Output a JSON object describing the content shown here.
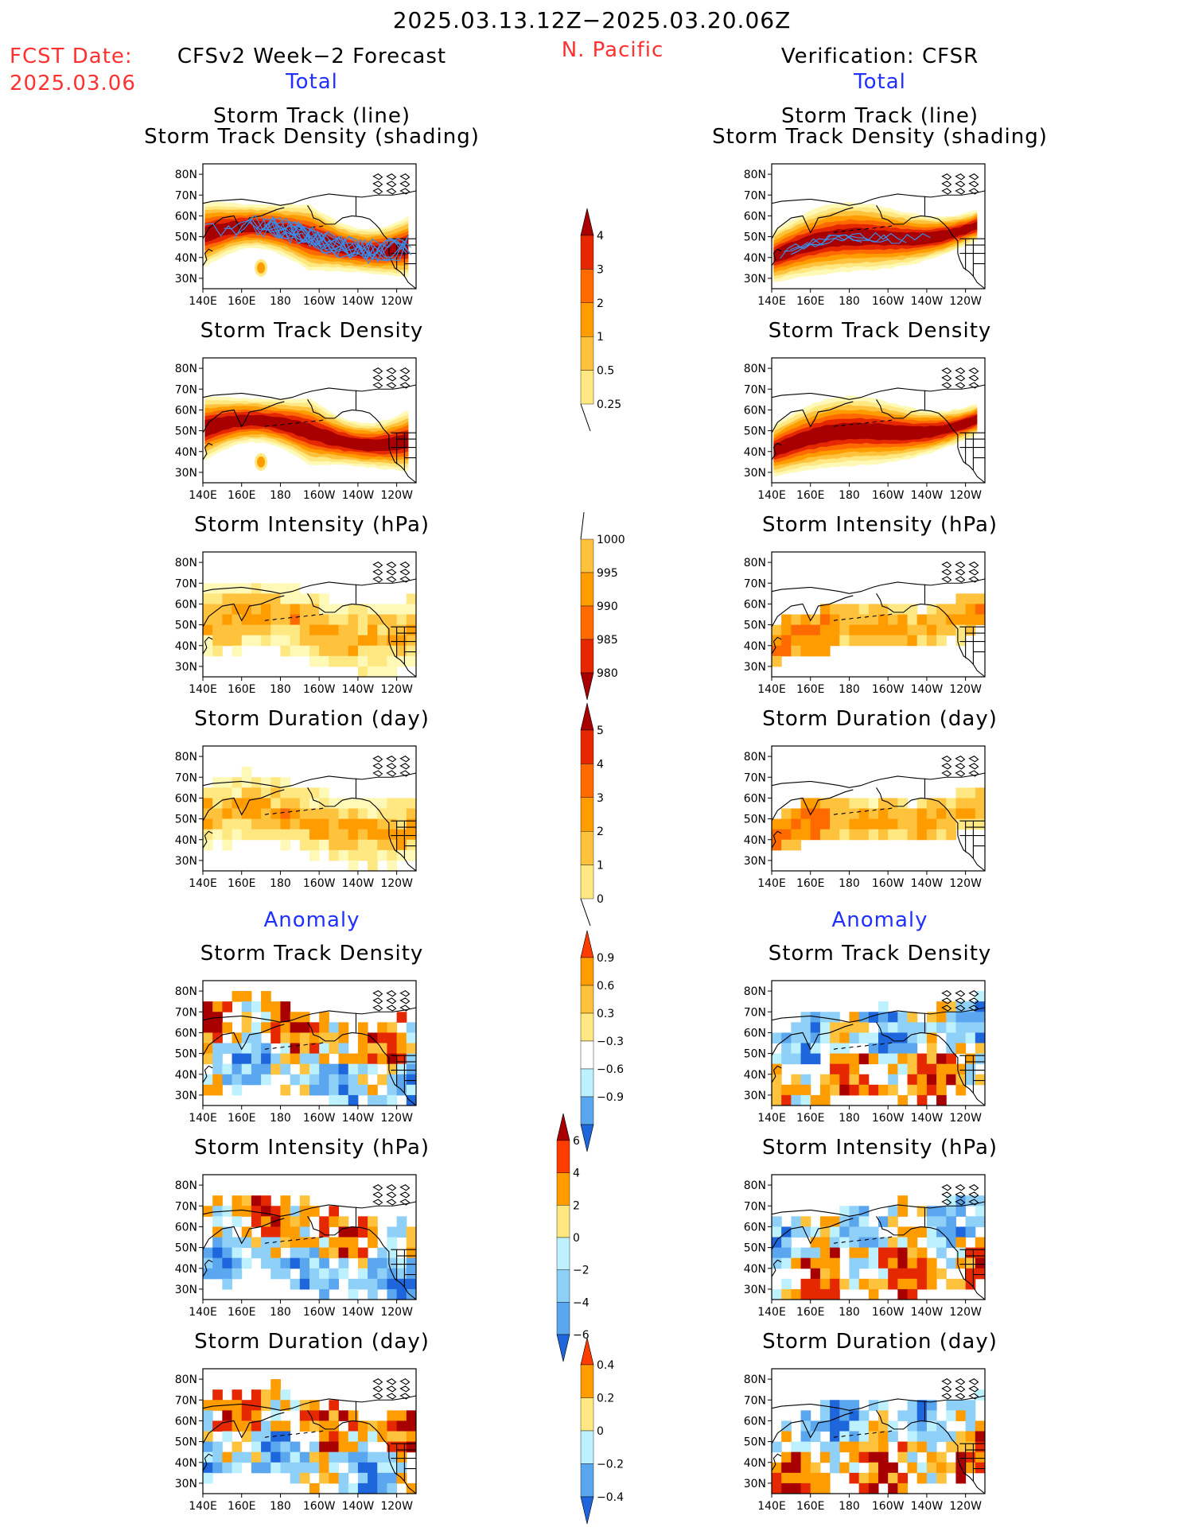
{
  "header": {
    "date_range": "2025.03.13.12Z−2025.03.20.06Z",
    "region": "N. Pacific",
    "fcst_label": "FCST Date:",
    "fcst_date": "2025.03.06",
    "left_title": "CFSv2 Week−2 Forecast",
    "right_title": "Verification: CFSR"
  },
  "sections": {
    "total": "Total",
    "anomaly": "Anomaly"
  },
  "panel_titles": {
    "track_line": "Storm Track (line)",
    "track_shading": "Storm Track Density (shading)",
    "density": "Storm Track Density",
    "intensity": "Storm Intensity (hPa)",
    "duration": "Storm Duration (day)"
  },
  "axes": {
    "lat_labels": [
      "80N",
      "70N",
      "60N",
      "50N",
      "40N",
      "30N"
    ],
    "lon_labels": [
      "140E",
      "160E",
      "180",
      "160W",
      "140W",
      "120W"
    ]
  },
  "colors": {
    "warm": [
      "#fff9b8",
      "#ffe882",
      "#ffc23c",
      "#ff9c00",
      "#ff6a00",
      "#e62800",
      "#a80000"
    ],
    "cool": [
      "#bdf1ff",
      "#8fd0f8",
      "#5aa7ef",
      "#1e66dc"
    ],
    "track_line": "#3c8ce8",
    "land_outline": "#000000"
  },
  "chart_data": [
    {
      "type": "heatmap",
      "column": "forecast",
      "row": "total",
      "title": "Storm Track (line) / Storm Track Density (shading)",
      "pattern": "belt with line",
      "legend": "density"
    },
    {
      "type": "heatmap",
      "column": "verification",
      "row": "total",
      "title": "Storm Track (line) / Storm Track Density (shading)",
      "pattern": "belt with line",
      "legend": "density"
    },
    {
      "type": "heatmap",
      "column": "forecast",
      "row": "total",
      "title": "Storm Track Density",
      "pattern": "belt",
      "legend": "density"
    },
    {
      "type": "heatmap",
      "column": "verification",
      "row": "total",
      "title": "Storm Track Density",
      "pattern": "belt",
      "legend": "density"
    },
    {
      "type": "heatmap",
      "column": "forecast",
      "row": "total",
      "title": "Storm Intensity (hPa)",
      "pattern": "grid",
      "legend": "intensity"
    },
    {
      "type": "heatmap",
      "column": "verification",
      "row": "total",
      "title": "Storm Intensity (hPa)",
      "pattern": "grid",
      "legend": "intensity"
    },
    {
      "type": "heatmap",
      "column": "forecast",
      "row": "total",
      "title": "Storm Duration (day)",
      "pattern": "grid",
      "legend": "duration"
    },
    {
      "type": "heatmap",
      "column": "verification",
      "row": "total",
      "title": "Storm Duration (day)",
      "pattern": "grid",
      "legend": "duration"
    },
    {
      "type": "heatmap",
      "column": "forecast",
      "row": "anomaly",
      "title": "Storm Track Density",
      "pattern": "anomaly",
      "legend": "density_anom"
    },
    {
      "type": "heatmap",
      "column": "verification",
      "row": "anomaly",
      "title": "Storm Track Density",
      "pattern": "anomaly",
      "legend": "density_anom"
    },
    {
      "type": "heatmap",
      "column": "forecast",
      "row": "anomaly",
      "title": "Storm Intensity (hPa)",
      "pattern": "anomaly",
      "legend": "intensity_anom"
    },
    {
      "type": "heatmap",
      "column": "verification",
      "row": "anomaly",
      "title": "Storm Intensity (hPa)",
      "pattern": "anomaly",
      "legend": "intensity_anom"
    },
    {
      "type": "heatmap",
      "column": "forecast",
      "row": "anomaly",
      "title": "Storm Duration (day)",
      "pattern": "anomaly",
      "legend": "duration_anom"
    },
    {
      "type": "heatmap",
      "column": "verification",
      "row": "anomaly",
      "title": "Storm Duration (day)",
      "pattern": "anomaly",
      "legend": "duration_anom"
    }
  ],
  "legends": {
    "density": {
      "labels": [
        "4",
        "3",
        "2",
        "1",
        "0.5",
        "0.25"
      ],
      "colors": [
        "#a80000",
        "#e62800",
        "#ff6a00",
        "#ff9c00",
        "#ffc23c",
        "#ffe882",
        "#fff9b8"
      ]
    },
    "intensity": {
      "labels": [
        "1000",
        "995",
        "990",
        "985",
        "980"
      ],
      "colors": [
        "#fff9b8",
        "#ffc23c",
        "#ff9c00",
        "#ff6a00",
        "#e62800",
        "#a80000"
      ]
    },
    "duration": {
      "labels": [
        "5",
        "4",
        "3",
        "2",
        "1",
        "0"
      ],
      "colors": [
        "#a80000",
        "#e62800",
        "#ff6a00",
        "#ff9c00",
        "#ffc23c",
        "#ffe882",
        "#fff9b8"
      ]
    },
    "density_anom": {
      "labels": [
        "0.9",
        "0.6",
        "0.3",
        "−0.3",
        "−0.6",
        "−0.9"
      ],
      "colors": [
        "#ff3c00",
        "#ff9c00",
        "#ffc23c",
        "#ffe882",
        "#ffffff",
        "#bdf1ff",
        "#5aa7ef",
        "#1e66dc"
      ]
    },
    "intensity_anom": {
      "labels": [
        "6",
        "4",
        "2",
        "0",
        "−2",
        "−4",
        "−6"
      ],
      "colors": [
        "#a80000",
        "#ff3c00",
        "#ff9c00",
        "#ffe882",
        "#bdf1ff",
        "#8fd0f8",
        "#5aa7ef",
        "#1e66dc"
      ]
    },
    "duration_anom": {
      "labels": [
        "0.4",
        "0.2",
        "0",
        "−0.2",
        "−0.4"
      ],
      "colors": [
        "#ff3c00",
        "#ff9c00",
        "#ffe882",
        "#bdf1ff",
        "#5aa7ef",
        "#1e66dc"
      ]
    }
  }
}
